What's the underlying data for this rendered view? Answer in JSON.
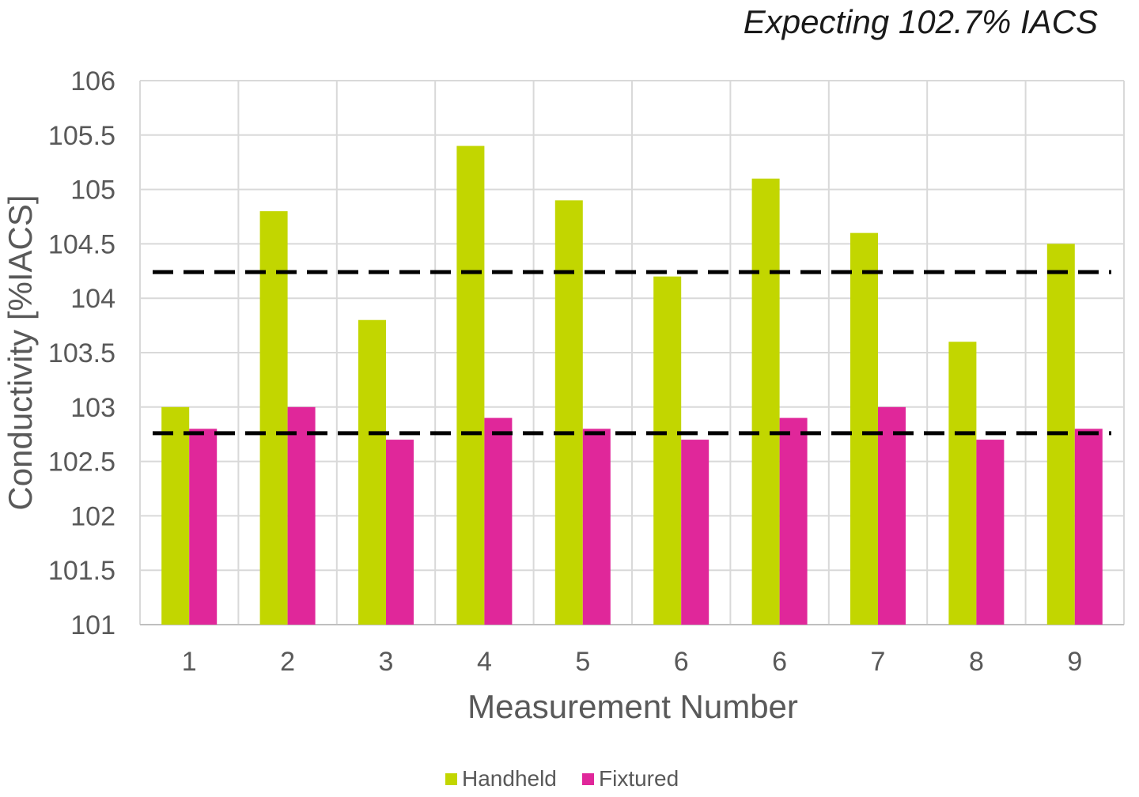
{
  "chart_data": {
    "type": "bar",
    "title": "Expecting 102.7% IACS",
    "xlabel": "Measurement Number",
    "ylabel": "Conductivity [%IACS]",
    "categories": [
      "1",
      "2",
      "3",
      "4",
      "5",
      "6",
      "6",
      "7",
      "8",
      "9"
    ],
    "series": [
      {
        "name": "Handheld",
        "color": "#c2d600",
        "values": [
          103.0,
          104.8,
          103.8,
          105.4,
          104.9,
          104.2,
          105.1,
          104.6,
          103.6,
          104.5
        ]
      },
      {
        "name": "Fixtured",
        "color": "#e0279a",
        "values": [
          102.8,
          103.0,
          102.7,
          102.9,
          102.8,
          102.7,
          102.9,
          103.0,
          102.7,
          102.8
        ]
      }
    ],
    "reference_lines": [
      {
        "value": 104.24,
        "style": "dashed",
        "color": "#000000"
      },
      {
        "value": 102.76,
        "style": "dashed",
        "color": "#000000"
      }
    ],
    "ylim": [
      101,
      106
    ],
    "yticks": [
      "101",
      "101.5",
      "102",
      "102.5",
      "103",
      "103.5",
      "104",
      "104.5",
      "105",
      "105.5",
      "106"
    ],
    "grid": true,
    "legend_position": "bottom"
  }
}
